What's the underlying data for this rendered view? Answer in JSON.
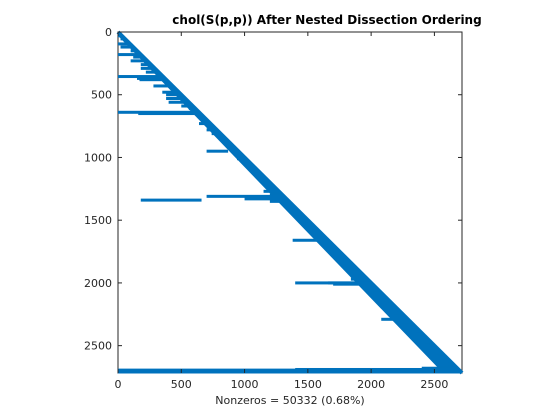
{
  "chart_data": {
    "type": "scatter",
    "title": "chol(S(p,p)) After Nested Dissection Ordering",
    "xlabel": "Nonzeros = 50332 (0.68%)",
    "ylabel": "",
    "xlim": [
      0,
      2718
    ],
    "ylim": [
      0,
      2718
    ],
    "y_reversed": true,
    "grid": false,
    "color": "#0072BD",
    "xticks": [
      0,
      500,
      1000,
      1500,
      2000,
      2500
    ],
    "yticks": [
      0,
      500,
      1000,
      1500,
      2000,
      2500
    ],
    "series": [
      {
        "kind": "diagonal",
        "band_rows": 25,
        "points": [
          [
            0,
            0
          ],
          [
            2718,
            2718
          ]
        ]
      },
      {
        "kind": "row-segments",
        "segments": [
          [
            30,
            0,
            55
          ],
          [
            55,
            20,
            95
          ],
          [
            95,
            0,
            140
          ],
          [
            120,
            20,
            140
          ],
          [
            150,
            100,
            190
          ],
          [
            180,
            0,
            210
          ],
          [
            200,
            120,
            220
          ],
          [
            230,
            100,
            260
          ],
          [
            260,
            180,
            280
          ],
          [
            290,
            180,
            320
          ],
          [
            320,
            220,
            340
          ],
          [
            355,
            0,
            380
          ],
          [
            370,
            150,
            400
          ],
          [
            380,
            170,
            420
          ],
          [
            430,
            280,
            460
          ],
          [
            480,
            350,
            500
          ],
          [
            500,
            380,
            520
          ],
          [
            530,
            380,
            560
          ],
          [
            560,
            400,
            590
          ],
          [
            590,
            500,
            620
          ],
          [
            610,
            560,
            650
          ],
          [
            640,
            0,
            670
          ],
          [
            650,
            160,
            680
          ],
          [
            700,
            680,
            720
          ],
          [
            730,
            640,
            760
          ],
          [
            780,
            700,
            800
          ],
          [
            810,
            740,
            830
          ],
          [
            830,
            780,
            860
          ],
          [
            870,
            820,
            890
          ],
          [
            900,
            860,
            920
          ],
          [
            950,
            700,
            870
          ],
          [
            960,
            930,
            980
          ],
          [
            1010,
            940,
            1030
          ],
          [
            1030,
            980,
            1050
          ],
          [
            1060,
            1010,
            1080
          ],
          [
            1090,
            1040,
            1110
          ],
          [
            1110,
            1080,
            1130
          ],
          [
            1150,
            1100,
            1170
          ],
          [
            1180,
            1140,
            1200
          ],
          [
            1200,
            1160,
            1220
          ],
          [
            1240,
            1200,
            1260
          ],
          [
            1270,
            1150,
            1290
          ],
          [
            1300,
            1200,
            1320
          ],
          [
            1310,
            700,
            1320
          ],
          [
            1330,
            1000,
            1340
          ],
          [
            1340,
            180,
            660
          ],
          [
            1345,
            1300,
            1360
          ],
          [
            1350,
            1200,
            1370
          ],
          [
            1390,
            1350,
            1410
          ],
          [
            1420,
            1380,
            1440
          ],
          [
            1450,
            1400,
            1470
          ],
          [
            1480,
            1440,
            1500
          ],
          [
            1510,
            1480,
            1530
          ],
          [
            1530,
            1500,
            1550
          ],
          [
            1560,
            1500,
            1580
          ],
          [
            1590,
            1540,
            1610
          ],
          [
            1620,
            1580,
            1640
          ],
          [
            1640,
            1600,
            1660
          ],
          [
            1660,
            1380,
            1680
          ],
          [
            1700,
            1640,
            1720
          ],
          [
            1730,
            1680,
            1750
          ],
          [
            1760,
            1700,
            1780
          ],
          [
            1790,
            1740,
            1810
          ],
          [
            1830,
            1780,
            1850
          ],
          [
            1860,
            1800,
            1880
          ],
          [
            1890,
            1840,
            1910
          ],
          [
            1920,
            1880,
            1940
          ],
          [
            1950,
            1900,
            1970
          ],
          [
            1970,
            1840,
            1990
          ],
          [
            2000,
            1400,
            2010
          ],
          [
            2000,
            1660,
            2010
          ],
          [
            2010,
            1700,
            2020
          ],
          [
            2040,
            1980,
            2060
          ],
          [
            2080,
            2020,
            2100
          ],
          [
            2110,
            2060,
            2130
          ],
          [
            2140,
            2100,
            2160
          ],
          [
            2170,
            2120,
            2190
          ],
          [
            2200,
            2160,
            2220
          ],
          [
            2240,
            2180,
            2260
          ],
          [
            2270,
            2220,
            2290
          ],
          [
            2290,
            2080,
            2300
          ],
          [
            2310,
            2240,
            2330
          ],
          [
            2350,
            2300,
            2370
          ],
          [
            2380,
            2320,
            2400
          ],
          [
            2410,
            2360,
            2430
          ],
          [
            2440,
            2400,
            2460
          ],
          [
            2470,
            2420,
            2490
          ],
          [
            2500,
            2460,
            2520
          ],
          [
            2530,
            2480,
            2550
          ],
          [
            2560,
            2500,
            2580
          ],
          [
            2590,
            2540,
            2610
          ],
          [
            2620,
            2560,
            2640
          ],
          [
            2650,
            2600,
            2670
          ],
          [
            2680,
            2400,
            2700
          ],
          [
            2690,
            1400,
            2700
          ],
          [
            2695,
            0,
            2705
          ],
          [
            2700,
            1360,
            2718
          ],
          [
            2705,
            2100,
            2718
          ],
          [
            2710,
            0,
            2718
          ]
        ]
      }
    ]
  }
}
